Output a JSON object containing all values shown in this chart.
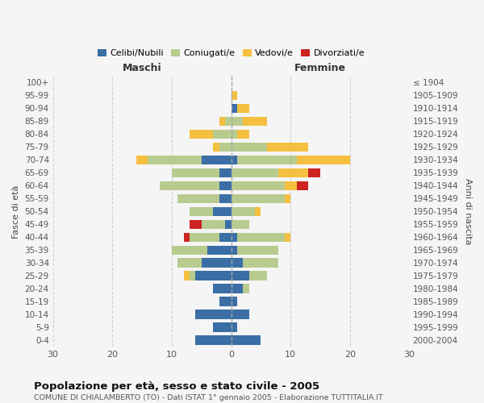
{
  "age_groups": [
    "100+",
    "95-99",
    "90-94",
    "85-89",
    "80-84",
    "75-79",
    "70-74",
    "65-69",
    "60-64",
    "55-59",
    "50-54",
    "45-49",
    "40-44",
    "35-39",
    "30-34",
    "25-29",
    "20-24",
    "15-19",
    "10-14",
    "5-9",
    "0-4"
  ],
  "birth_years": [
    "≤ 1904",
    "1905-1909",
    "1910-1914",
    "1915-1919",
    "1920-1924",
    "1925-1929",
    "1930-1934",
    "1935-1939",
    "1940-1944",
    "1945-1949",
    "1950-1954",
    "1955-1959",
    "1960-1964",
    "1965-1969",
    "1970-1974",
    "1975-1979",
    "1980-1984",
    "1985-1989",
    "1990-1994",
    "1995-1999",
    "2000-2004"
  ],
  "maschi": {
    "celibi": [
      0,
      0,
      0,
      0,
      0,
      0,
      5,
      2,
      2,
      2,
      3,
      1,
      2,
      4,
      5,
      6,
      3,
      2,
      6,
      3,
      6
    ],
    "coniugati": [
      0,
      0,
      0,
      1,
      3,
      2,
      9,
      8,
      10,
      7,
      4,
      4,
      5,
      6,
      4,
      1,
      0,
      0,
      0,
      0,
      0
    ],
    "vedovi": [
      0,
      0,
      0,
      1,
      4,
      1,
      2,
      0,
      0,
      0,
      0,
      0,
      0,
      0,
      0,
      1,
      0,
      0,
      0,
      0,
      0
    ],
    "divorziati": [
      0,
      0,
      0,
      0,
      0,
      0,
      0,
      0,
      0,
      0,
      0,
      2,
      1,
      0,
      0,
      0,
      0,
      0,
      0,
      0,
      0
    ]
  },
  "femmine": {
    "nubili": [
      0,
      0,
      1,
      0,
      0,
      0,
      1,
      0,
      0,
      0,
      0,
      0,
      1,
      1,
      2,
      3,
      2,
      1,
      3,
      1,
      5
    ],
    "coniugate": [
      0,
      0,
      0,
      2,
      1,
      6,
      10,
      8,
      9,
      9,
      4,
      3,
      8,
      7,
      6,
      3,
      1,
      0,
      0,
      0,
      0
    ],
    "vedove": [
      0,
      1,
      2,
      4,
      2,
      7,
      9,
      5,
      2,
      1,
      1,
      0,
      1,
      0,
      0,
      0,
      0,
      0,
      0,
      0,
      0
    ],
    "divorziate": [
      0,
      0,
      0,
      0,
      0,
      0,
      0,
      2,
      2,
      0,
      0,
      0,
      0,
      0,
      0,
      0,
      0,
      0,
      0,
      0,
      0
    ]
  },
  "colors": {
    "celibi": "#3a6ea5",
    "coniugati": "#b8cb8f",
    "vedovi": "#f5c040",
    "divorziati": "#cc2222"
  },
  "xlim": 30,
  "title": "Popolazione per età, sesso e stato civile - 2005",
  "subtitle": "COMUNE DI CHIALAMBERTO (TO) - Dati ISTAT 1° gennaio 2005 - Elaborazione TUTTITALIA.IT",
  "ylabel_left": "Fasce di età",
  "ylabel_right": "Anni di nascita",
  "label_maschi": "Maschi",
  "label_femmine": "Femmine",
  "legend": [
    "Celibi/Nubili",
    "Coniugati/e",
    "Vedovi/e",
    "Divorziati/e"
  ],
  "bg_color": "#f5f5f5",
  "grid_color": "#cccccc"
}
